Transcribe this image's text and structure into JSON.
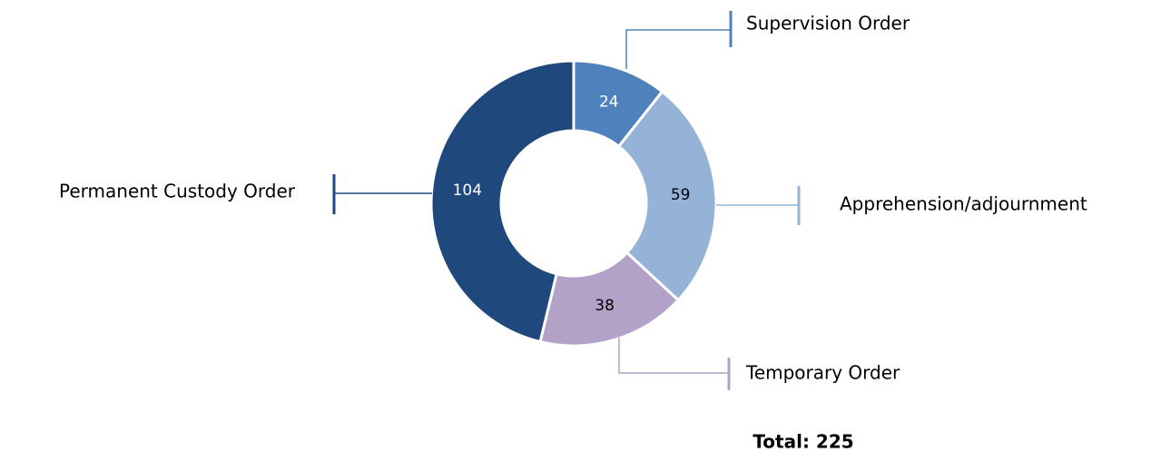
{
  "chart_data": {
    "type": "donut",
    "categories": [
      "Supervision Order",
      "Apprehension/adjournment",
      "Temporary Order",
      "Permanent Custody Order"
    ],
    "values": [
      24,
      59,
      38,
      104
    ],
    "colors": [
      "#4f81bd",
      "#95b3d7",
      "#b3a2c7",
      "#1f497d"
    ],
    "label_colors": [
      "#ffffff",
      "#000000",
      "#000000",
      "#ffffff"
    ],
    "annotation": "Total: 225"
  }
}
